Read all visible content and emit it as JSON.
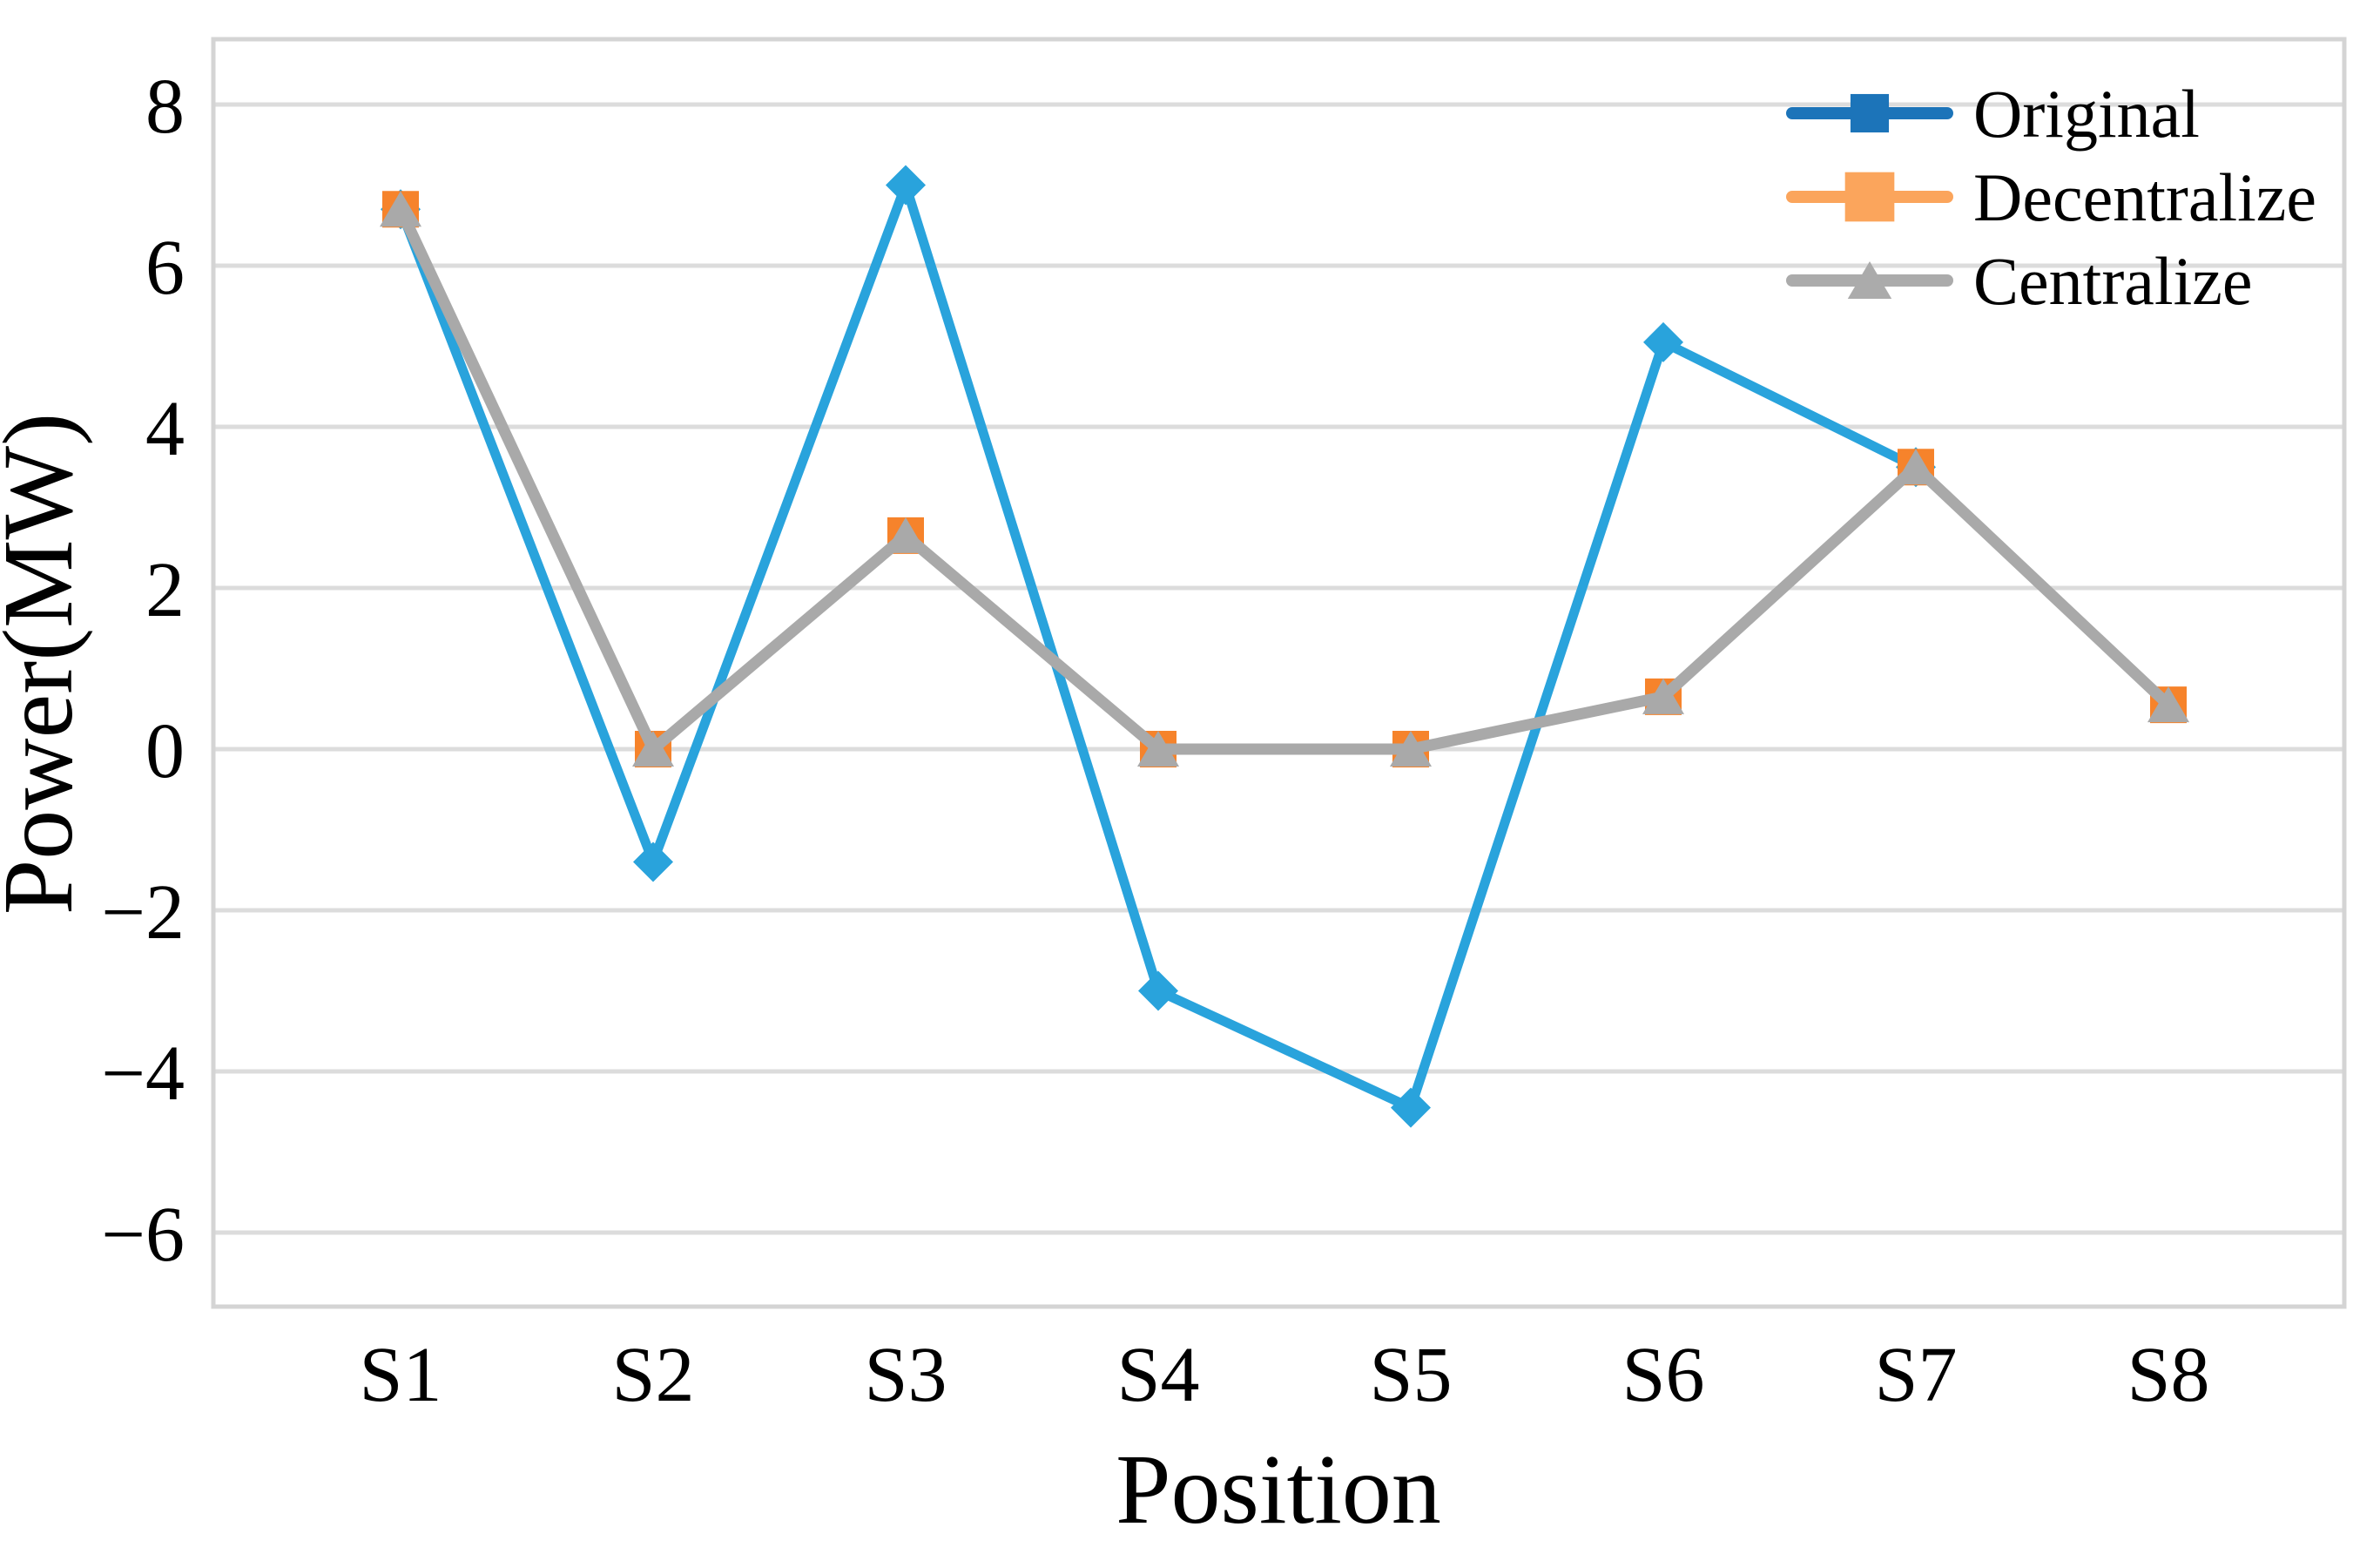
{
  "figure": {
    "background": "#FFFFFF"
  },
  "chart_data": {
    "type": "line",
    "title": "",
    "xlabel": "Position",
    "ylabel": "Power(MW)",
    "categories": [
      "S1",
      "S2",
      "S3",
      "S4",
      "S5",
      "S6",
      "S7",
      "S8"
    ],
    "y_ticks": [
      8,
      6,
      4,
      2,
      0,
      -2,
      -4,
      -6
    ],
    "y_tick_labels": [
      "8",
      "6",
      "4",
      "2",
      "0",
      "−2",
      "−4",
      "−6"
    ],
    "ylim": [
      -6.9,
      8.8
    ],
    "grid": "horizontal",
    "legend_position": "top-right-inside",
    "series": [
      {
        "name": "Original",
        "color": "#29A3DC",
        "legend_color": "#1C74B9",
        "marker": "diamond",
        "legend_marker": "square",
        "values": [
          6.7,
          -1.4,
          7.0,
          -3.0,
          -4.45,
          5.05,
          3.5,
          null
        ]
      },
      {
        "name": "Decentralize",
        "color": "#F6832B",
        "legend_color": "#FBA55C",
        "marker": "square",
        "legend_marker": "square",
        "values": [
          6.7,
          0,
          2.65,
          0,
          0,
          0.65,
          3.5,
          0.55
        ]
      },
      {
        "name": "Centralize",
        "color": "#A9A9A9",
        "legend_color": "#ABABAB",
        "marker": "triangle",
        "legend_marker": "triangle",
        "values": [
          6.7,
          0,
          2.65,
          0,
          0,
          0.65,
          3.5,
          0.55
        ]
      }
    ],
    "colors": {
      "grid": "#DCDCDC",
      "frame": "#D4D4D4",
      "text": "#000000"
    }
  }
}
